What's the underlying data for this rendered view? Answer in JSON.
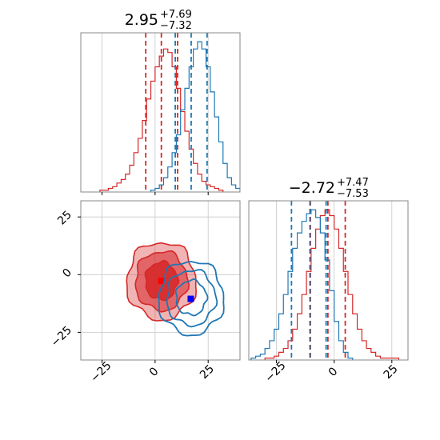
{
  "colors": {
    "red": "#d62728",
    "blue": "#1f77b4",
    "grid": "#c8c8c8",
    "axis": "#888888"
  },
  "chart_data": [
    {
      "type": "histogram",
      "panel": "top-left",
      "title": {
        "value": "2.95",
        "upper": "+7.69",
        "lower": "−7.32"
      },
      "xlim": [
        -35,
        40
      ],
      "xticks": [
        -25,
        0,
        25
      ],
      "grid": true,
      "series": [
        {
          "color": "red",
          "bin_edges": [
            -26,
            -24,
            -22,
            -20,
            -18,
            -16,
            -14,
            -12,
            -10,
            -8,
            -6,
            -4,
            -2,
            0,
            2,
            4,
            6,
            8,
            10,
            12,
            14,
            16,
            18,
            20,
            22,
            24,
            26,
            28,
            30,
            32
          ],
          "counts": [
            1,
            1,
            2,
            3,
            5,
            7,
            10,
            15,
            22,
            30,
            40,
            52,
            62,
            70,
            76,
            80,
            78,
            70,
            58,
            45,
            34,
            24,
            16,
            10,
            6,
            4,
            3,
            2,
            1
          ],
          "quantile_lines": [
            -4.4,
            2.95,
            10.6
          ]
        },
        {
          "color": "blue",
          "bin_edges": [
            -2,
            0,
            2,
            4,
            6,
            8,
            10,
            12,
            14,
            16,
            18,
            20,
            22,
            24,
            26,
            28,
            30,
            32,
            34,
            36,
            38,
            40
          ],
          "counts": [
            1,
            2,
            4,
            8,
            14,
            22,
            32,
            46,
            58,
            70,
            80,
            84,
            80,
            70,
            56,
            42,
            28,
            16,
            8,
            4,
            2
          ],
          "quantile_lines": [
            9.5,
            17.0,
            24.5
          ]
        }
      ]
    },
    {
      "type": "contour",
      "panel": "bottom-left",
      "xlim": [
        -35,
        40
      ],
      "ylim": [
        -37,
        32
      ],
      "xticks": [
        -25,
        0,
        25
      ],
      "yticks": [
        -25,
        0,
        25
      ],
      "grid": true,
      "series": [
        {
          "color": "red",
          "center": [
            2.95,
            -2.72
          ],
          "levels": [
            [
              7.6,
              8.2
            ],
            [
              12.3,
              12.8
            ],
            [
              16.3,
              16.8
            ]
          ],
          "filled": true,
          "marker": [
            2.95,
            -2.72
          ]
        },
        {
          "color": "blue",
          "center": [
            17.0,
            -10.0
          ],
          "levels": [
            [
              7.2,
              7.5
            ],
            [
              11.5,
              12.0
            ],
            [
              15.3,
              16.0
            ]
          ],
          "filled": false,
          "marker": [
            16.8,
            -10.5
          ]
        }
      ]
    },
    {
      "type": "histogram",
      "panel": "bottom-right",
      "title": {
        "value": "−2.72",
        "upper": "+7.47",
        "lower": "−7.53"
      },
      "xlim": [
        -37,
        32
      ],
      "xticks": [
        -25,
        0,
        25
      ],
      "grid": true,
      "series": [
        {
          "color": "red",
          "bin_edges": [
            -30,
            -28,
            -26,
            -24,
            -22,
            -20,
            -18,
            -16,
            -14,
            -12,
            -10,
            -8,
            -6,
            -4,
            -2,
            0,
            2,
            4,
            6,
            8,
            10,
            12,
            14,
            16,
            18,
            20,
            22,
            24,
            26,
            28
          ],
          "counts": [
            1,
            1,
            2,
            4,
            6,
            10,
            16,
            24,
            34,
            46,
            58,
            68,
            75,
            78,
            75,
            68,
            58,
            46,
            34,
            24,
            16,
            10,
            6,
            4,
            2,
            1,
            1,
            1,
            1
          ],
          "quantile_lines": [
            -10.3,
            -2.72,
            4.8
          ]
        },
        {
          "color": "blue",
          "bin_edges": [
            -36,
            -34,
            -32,
            -30,
            -28,
            -26,
            -24,
            -22,
            -20,
            -18,
            -16,
            -14,
            -12,
            -10,
            -8,
            -6,
            -4,
            -2,
            0,
            2,
            4,
            6,
            8
          ],
          "counts": [
            1,
            2,
            3,
            6,
            10,
            16,
            24,
            34,
            46,
            58,
            66,
            72,
            76,
            78,
            74,
            66,
            52,
            36,
            20,
            10,
            4,
            1
          ],
          "quantile_lines": [
            -18.5,
            -10.5,
            -3.5
          ]
        }
      ]
    }
  ]
}
